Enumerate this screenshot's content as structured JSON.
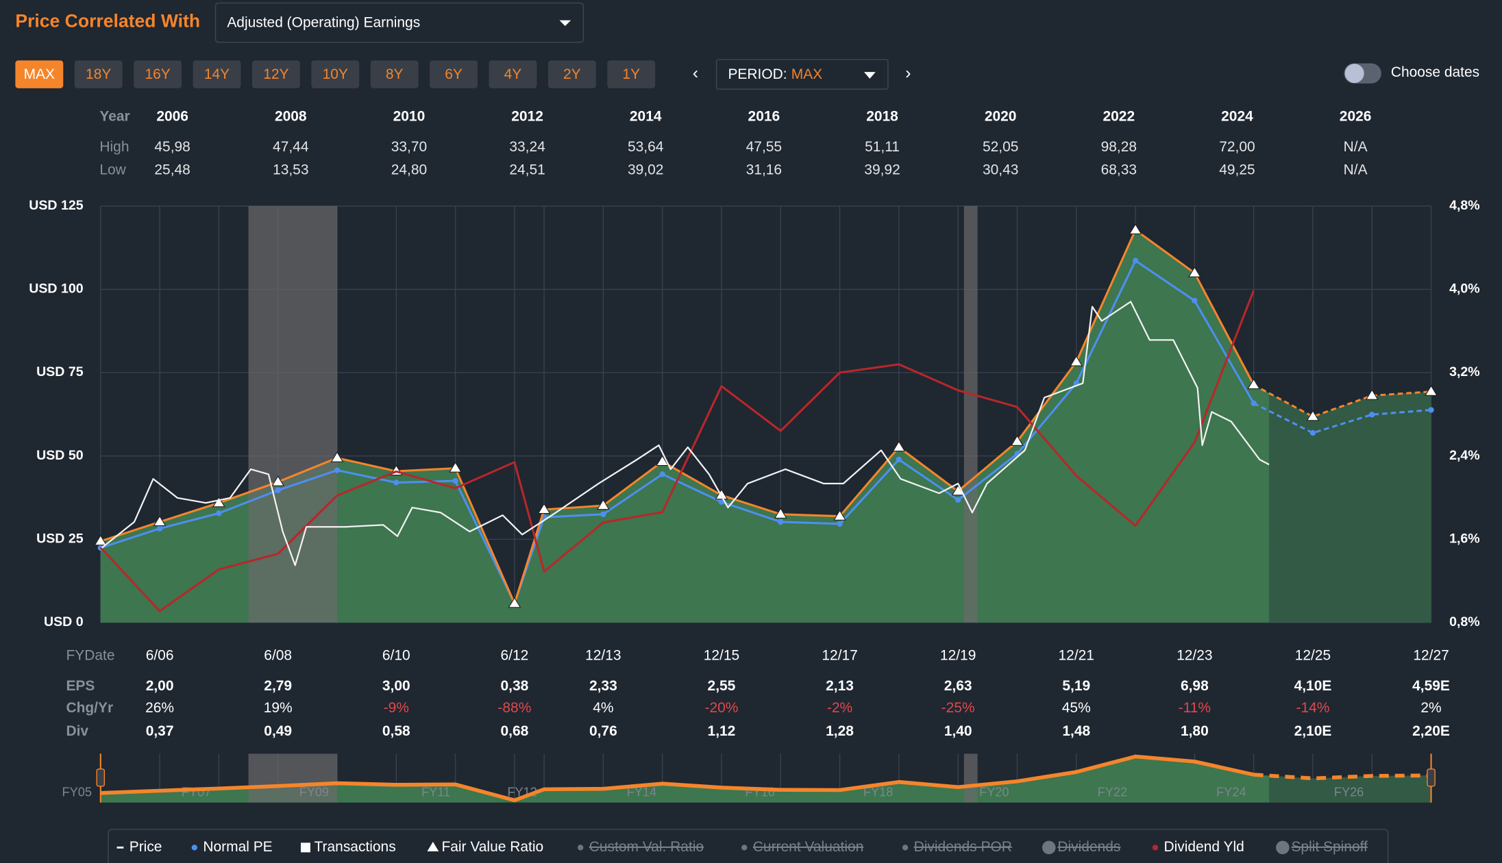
{
  "header": {
    "title": "Price Correlated With",
    "dropdown": "Adjusted (Operating) Earnings"
  },
  "range_buttons": [
    "MAX",
    "18Y",
    "16Y",
    "14Y",
    "12Y",
    "10Y",
    "8Y",
    "6Y",
    "4Y",
    "2Y",
    "1Y"
  ],
  "active_button": 0,
  "period": {
    "label": "PERIOD:",
    "value": "MAX"
  },
  "choose_dates": "Choose dates",
  "year_table": {
    "row_labels": [
      "Year",
      "High",
      "Low"
    ],
    "years": [
      "2006",
      "2008",
      "2010",
      "2012",
      "2014",
      "2016",
      "2018",
      "2020",
      "2022",
      "2024",
      "2026"
    ],
    "high": [
      "45,98",
      "47,44",
      "33,70",
      "33,24",
      "53,64",
      "47,55",
      "51,11",
      "52,05",
      "98,28",
      "72,00",
      "N/A"
    ],
    "low": [
      "25,48",
      "13,53",
      "24,80",
      "24,51",
      "39,02",
      "31,16",
      "39,92",
      "30,43",
      "68,33",
      "49,25",
      "N/A"
    ]
  },
  "chart_data": {
    "type": "line",
    "xlim": [
      2005.5,
      2028
    ],
    "xticks": [
      {
        "value": 2006.5,
        "label": "6/06"
      },
      {
        "value": 2008.5,
        "label": "6/08"
      },
      {
        "value": 2010.5,
        "label": "6/10"
      },
      {
        "value": 2012.5,
        "label": "6/12"
      },
      {
        "value": 2014,
        "label": "12/13"
      },
      {
        "value": 2016,
        "label": "12/15"
      },
      {
        "value": 2018,
        "label": "12/17"
      },
      {
        "value": 2020,
        "label": "12/19"
      },
      {
        "value": 2022,
        "label": "12/21"
      },
      {
        "value": 2024,
        "label": "12/23"
      },
      {
        "value": 2026,
        "label": "12/25"
      },
      {
        "value": 2028,
        "label": "12/27"
      }
    ],
    "ylim": [
      0,
      125
    ],
    "yticks": [
      {
        "value": 125,
        "label": "USD 125"
      },
      {
        "value": 100,
        "label": "USD 100"
      },
      {
        "value": 75,
        "label": "USD 75"
      },
      {
        "value": 50,
        "label": "USD 50"
      },
      {
        "value": 25,
        "label": "USD 25"
      },
      {
        "value": 0,
        "label": "USD 0"
      }
    ],
    "y2lim": [
      0.8,
      4.8
    ],
    "y2ticks": [
      {
        "value": 4.8,
        "label": "4,8%"
      },
      {
        "value": 4.0,
        "label": "4,0%"
      },
      {
        "value": 3.2,
        "label": "3,2%"
      },
      {
        "value": 2.4,
        "label": "2,4%"
      },
      {
        "value": 1.6,
        "label": "1,6%"
      },
      {
        "value": 0.8,
        "label": "0,8%"
      }
    ],
    "grid": true,
    "recessions": [
      [
        2008.0,
        2009.5
      ],
      [
        2020.1,
        2020.33
      ]
    ],
    "series": [
      {
        "name": "Price",
        "color": "#f2f2f2",
        "symbol": "dash",
        "x": [
          2005.52,
          2006.07,
          2006.39,
          2006.8,
          2007.28,
          2007.69,
          2008.04,
          2008.34,
          2008.58,
          2008.79,
          2008.98,
          2009.63,
          2010.28,
          2010.52,
          2010.77,
          2011.25,
          2011.74,
          2012.3,
          2012.63,
          2013.2,
          2013.92,
          2014.57,
          2014.94,
          2015.14,
          2015.43,
          2015.79,
          2016.11,
          2016.44,
          2017.08,
          2017.73,
          2018.06,
          2018.7,
          2019.03,
          2019.68,
          2020.0,
          2020.24,
          2020.49,
          2021.13,
          2021.46,
          2022.11,
          2022.27,
          2022.43,
          2022.92,
          2023.24,
          2023.64,
          2024.05,
          2024.13,
          2024.29,
          2024.62,
          2025.1,
          2025.26
        ],
        "values": [
          22.4,
          30.2,
          43.1,
          37.4,
          35.9,
          37.4,
          46.0,
          44.5,
          27.3,
          17.2,
          28.7,
          28.7,
          29.3,
          25.9,
          34.5,
          33.0,
          27.3,
          32.2,
          26.4,
          33.0,
          41.7,
          48.9,
          53.2,
          46.0,
          52.6,
          44.5,
          34.5,
          41.7,
          46.0,
          41.7,
          41.7,
          51.7,
          43.1,
          38.8,
          41.7,
          33.0,
          41.7,
          51.7,
          67.5,
          71.8,
          94.8,
          90.5,
          96.3,
          84.8,
          84.8,
          70.4,
          53.2,
          63.2,
          60.3,
          48.9,
          47.4
        ]
      },
      {
        "name": "Normal PE",
        "color": "#4d8ff0",
        "symbol": "dot",
        "dashed_from": 2025,
        "x": [
          2005.5,
          2006.5,
          2007.5,
          2008.5,
          2009.5,
          2010.5,
          2011.5,
          2012.5,
          2013,
          2014,
          2015,
          2016,
          2017,
          2018,
          2019,
          2020,
          2021,
          2022,
          2023,
          2024,
          2025,
          2026,
          2027,
          2028
        ],
        "values": [
          22.4,
          28.2,
          32.8,
          39.7,
          45.7,
          42.0,
          42.5,
          5.7,
          31.6,
          32.5,
          44.5,
          36.2,
          30.2,
          29.6,
          48.9,
          36.8,
          50.6,
          71.8,
          108.6,
          96.6,
          65.8,
          56.9,
          62.4,
          63.8
        ]
      },
      {
        "name": "Fair Value Ratio",
        "color": "#f5852b",
        "symbol": "triangle",
        "area_color": "#3f7a51",
        "dashed_from": 2025,
        "x": [
          2005.5,
          2006.5,
          2007.5,
          2008.5,
          2009.5,
          2010.5,
          2011.5,
          2012.5,
          2013,
          2014,
          2015,
          2016,
          2017,
          2018,
          2019,
          2020,
          2021,
          2022,
          2023,
          2024,
          2025,
          2026,
          2027,
          2028
        ],
        "values": [
          24.4,
          30.2,
          35.9,
          42.2,
          49.4,
          45.4,
          46.3,
          5.7,
          33.9,
          35.1,
          48.3,
          38.2,
          32.5,
          31.9,
          52.6,
          39.4,
          54.3,
          78.2,
          117.8,
          104.9,
          71.3,
          61.8,
          68.1,
          69.3
        ]
      },
      {
        "name": "Dividend Yld",
        "color": "#b8272a",
        "symbol": "dot",
        "axis": "y2",
        "x": [
          2005.5,
          2006.5,
          2007.5,
          2008.5,
          2009.5,
          2010.5,
          2011.5,
          2012.5,
          2013,
          2014,
          2015,
          2016,
          2017,
          2018,
          2019,
          2020,
          2021,
          2022,
          2023,
          2024,
          2025
        ],
        "values": [
          1.52,
          0.91,
          1.31,
          1.46,
          2.02,
          2.25,
          2.09,
          2.34,
          1.29,
          1.76,
          1.86,
          3.07,
          2.64,
          3.2,
          3.28,
          3.03,
          2.87,
          2.21,
          1.73,
          2.53,
          3.99
        ]
      }
    ]
  },
  "fy_table": {
    "row_labels": [
      "FYDate",
      "EPS",
      "Chg/Yr",
      "Div"
    ],
    "eps": [
      "2,00",
      "2,79",
      "3,00",
      "0,38",
      "2,33",
      "2,55",
      "2,13",
      "2,63",
      "5,19",
      "6,98",
      "4,10E",
      "4,59E"
    ],
    "chg": [
      "26%",
      "19%",
      "-9%",
      "-88%",
      "4%",
      "-20%",
      "-2%",
      "-25%",
      "45%",
      "-11%",
      "-14%",
      "2%"
    ],
    "div": [
      "0,37",
      "0,49",
      "0,58",
      "0,68",
      "0,76",
      "1,12",
      "1,28",
      "1,40",
      "1,48",
      "1,80",
      "2,10E",
      "2,20E"
    ]
  },
  "navigator": {
    "xticks": [
      {
        "value": 2005.1,
        "label": "FY05"
      },
      {
        "value": 2007.12,
        "label": "FY07"
      },
      {
        "value": 2009.11,
        "label": "FY09"
      },
      {
        "value": 2011.17,
        "label": "FY11"
      },
      {
        "value": 2012.63,
        "label": "FY12"
      },
      {
        "value": 2014.65,
        "label": "FY14"
      },
      {
        "value": 2016.65,
        "label": "FY16"
      },
      {
        "value": 2018.65,
        "label": "FY18"
      },
      {
        "value": 2020.61,
        "label": "FY20"
      },
      {
        "value": 2022.61,
        "label": "FY22"
      },
      {
        "value": 2024.62,
        "label": "FY24"
      },
      {
        "value": 2026.61,
        "label": "FY26"
      }
    ]
  },
  "legend": [
    {
      "series": 0
    },
    {
      "series": 1
    },
    {
      "name": "Transactions",
      "active": true,
      "symbol": "square"
    },
    {
      "series": 2
    },
    {
      "name": "Custom Val. Ratio",
      "active": false,
      "symbol": "dot"
    },
    {
      "name": "Current Valuation",
      "active": false,
      "symbol": "dot"
    },
    {
      "name": "Dividends POR",
      "active": false,
      "symbol": "dot"
    },
    {
      "name": "Dividends",
      "active": false,
      "symbol": "circle-big"
    },
    {
      "series": 3
    },
    {
      "name": "Split Spinoff",
      "active": false,
      "symbol": "circle-big"
    }
  ]
}
